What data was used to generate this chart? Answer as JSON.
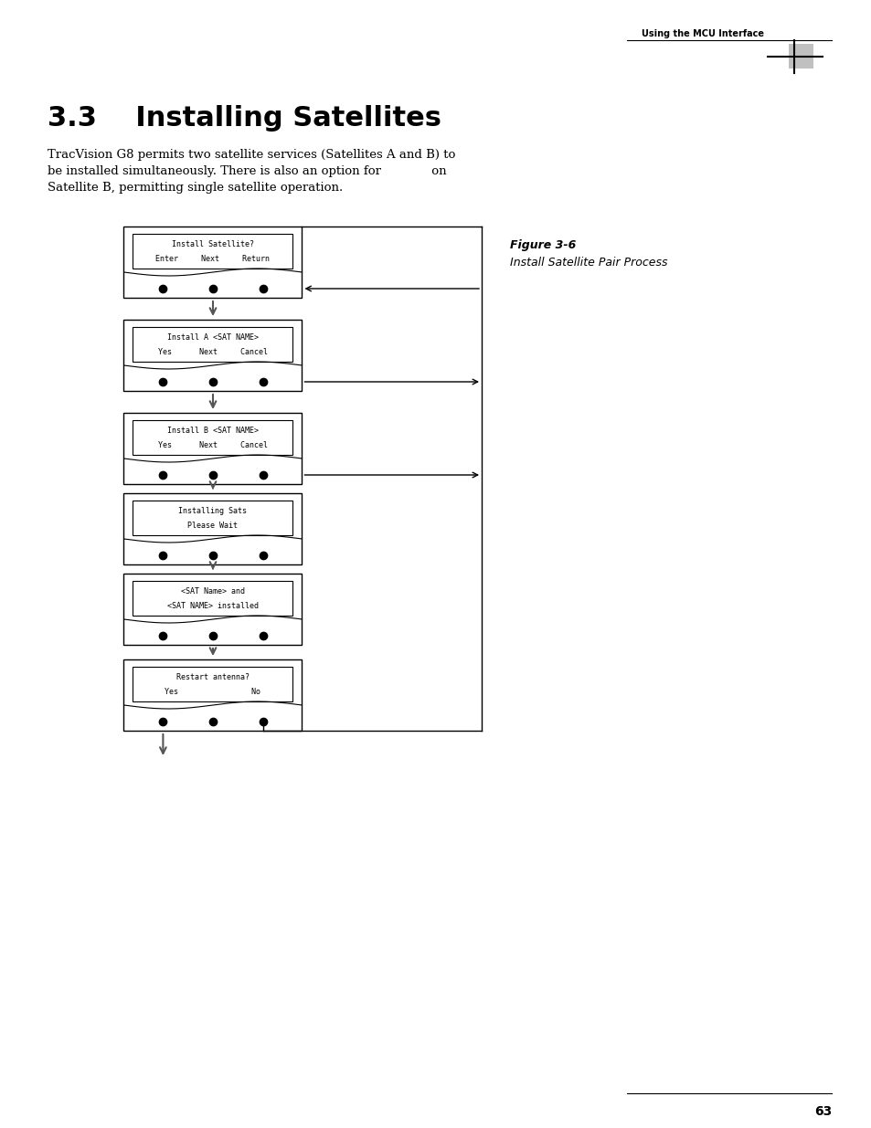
{
  "title": "3.3    Installing Satellites",
  "header_text": "Using the MCU Interface",
  "body_line1": "TracVision G8 permits two satellite services (Satellites A and B) to",
  "body_line2": "be installed simultaneously. There is also an option for             on",
  "body_line3": "Satellite B, permitting single satellite operation.",
  "figure_label": "Figure 3-6",
  "figure_caption": "Install Satellite Pair Process",
  "page_number": "63",
  "boxes": [
    {
      "id": 0,
      "line1": "Install Satellite?",
      "line2": "Enter     Next     Return"
    },
    {
      "id": 1,
      "line1": "Install A <SAT NAME>",
      "line2": "Yes      Next     Cancel"
    },
    {
      "id": 2,
      "line1": "Install B <SAT NAME>",
      "line2": "Yes      Next     Cancel"
    },
    {
      "id": 3,
      "line1": "Installing Sats",
      "line2": "Please Wait"
    },
    {
      "id": 4,
      "line1": "<SAT Name> and",
      "line2": "<SAT NAME> installed"
    },
    {
      "id": 5,
      "line1": "Restart antenna?",
      "line2": "Yes                No"
    }
  ]
}
